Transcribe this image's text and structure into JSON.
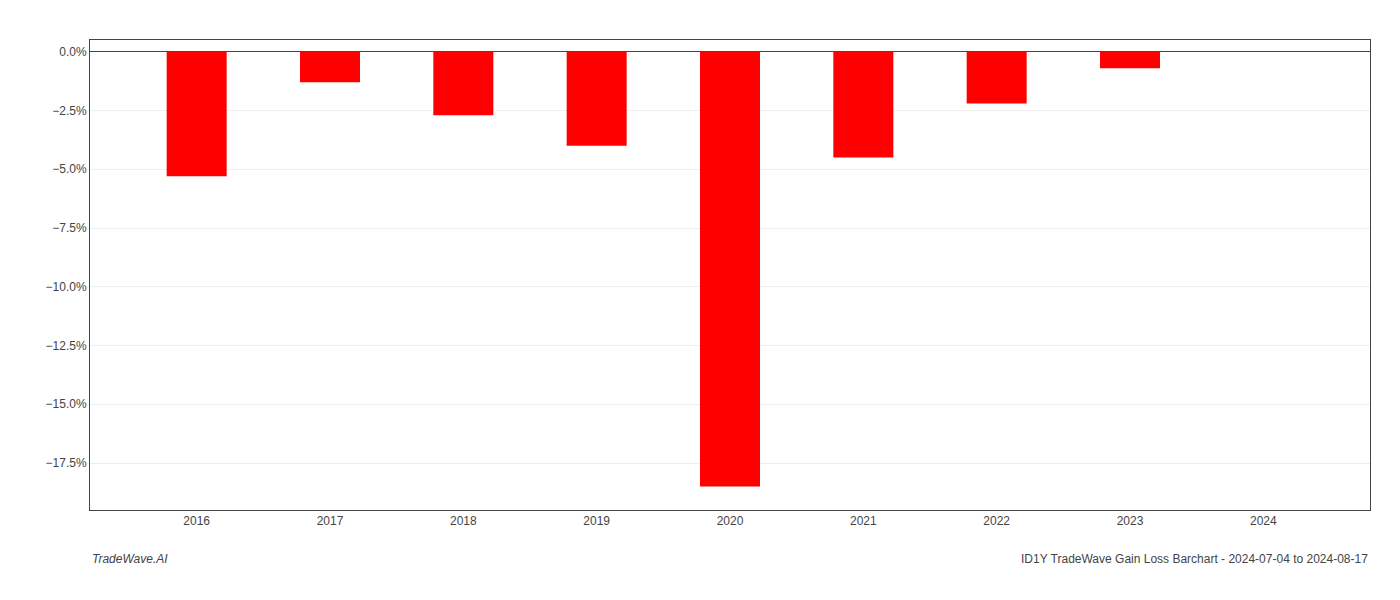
{
  "chart_data": {
    "type": "bar",
    "x": [
      2016,
      2017,
      2018,
      2019,
      2020,
      2021,
      2022,
      2023
    ],
    "values": [
      -5.3,
      -1.3,
      -2.7,
      -4.0,
      -18.5,
      -4.5,
      -2.2,
      -0.7
    ],
    "color": "#ff0000",
    "xlim": [
      2015.2,
      2024.8
    ],
    "xticks": [
      2016,
      2017,
      2018,
      2019,
      2020,
      2021,
      2022,
      2023,
      2024
    ],
    "ylim": [
      -19.5,
      0.5
    ],
    "yticks": [
      {
        "value": 0.0,
        "label": "0.0%"
      },
      {
        "value": -2.5,
        "label": "−2.5%"
      },
      {
        "value": -5.0,
        "label": "−5.0%"
      },
      {
        "value": -7.5,
        "label": "−7.5%"
      },
      {
        "value": -10.0,
        "label": "−10.0%"
      },
      {
        "value": -12.5,
        "label": "−12.5%"
      },
      {
        "value": -15.0,
        "label": "−15.0%"
      },
      {
        "value": -17.5,
        "label": "−17.5%"
      }
    ],
    "grid": "y",
    "annotations": [
      "TradeWave.AI",
      "ID1Y TradeWave Gain Loss Barchart - 2024-07-04 to 2024-08-17"
    ]
  }
}
